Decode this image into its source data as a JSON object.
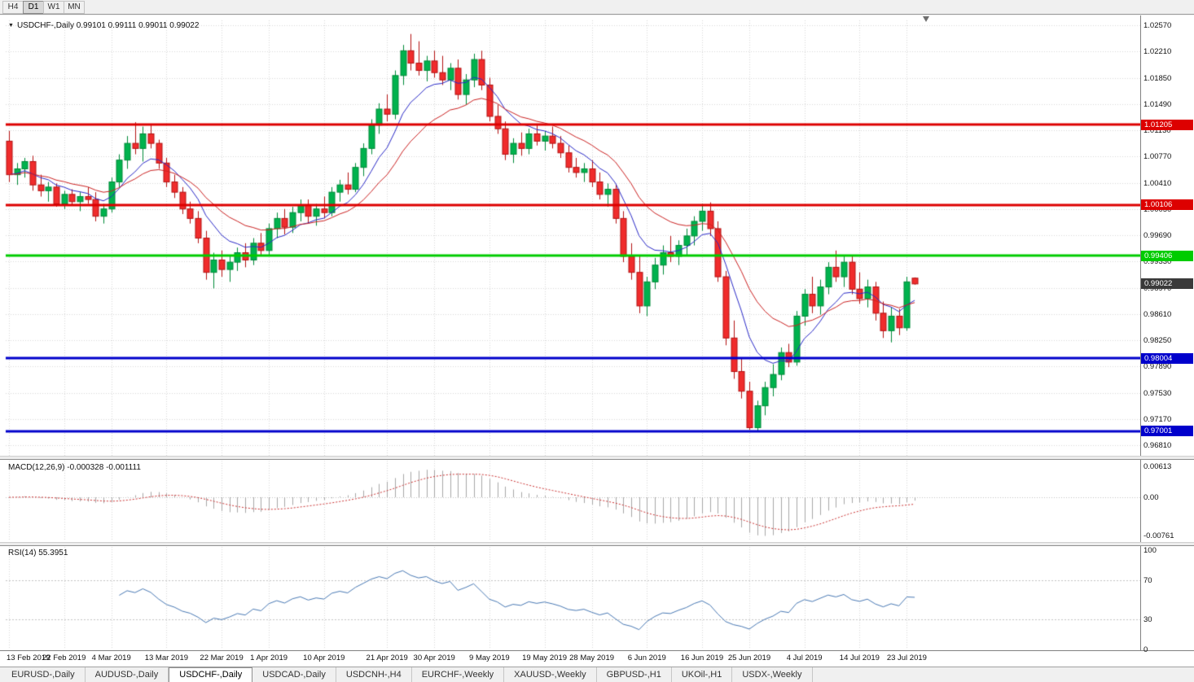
{
  "toolbar": {
    "timeframes": [
      "H4",
      "D1",
      "W1",
      "MN"
    ],
    "active": "D1"
  },
  "chart": {
    "title": "USDCHF-,Daily",
    "ohlc_text": "0.99101 0.99111 0.99011 0.99022"
  },
  "chart_data": {
    "type": "candlestick",
    "symbol": "USDCHF-",
    "period": "Daily",
    "ohlc_format": [
      "open",
      "high",
      "low",
      "close"
    ],
    "candles": [
      [
        1.0098,
        1.0112,
        1.0042,
        1.0052
      ],
      [
        1.0052,
        1.0068,
        1.0038,
        1.006
      ],
      [
        1.006,
        1.0075,
        1.0048,
        1.007
      ],
      [
        1.007,
        1.0078,
        1.003,
        1.0038
      ],
      [
        1.0038,
        1.0052,
        1.0022,
        1.003
      ],
      [
        1.003,
        1.0042,
        1.0015,
        1.0035
      ],
      [
        1.0035,
        1.004,
        1.0008,
        1.0012
      ],
      [
        1.0012,
        1.003,
        1.0005,
        1.0025
      ],
      [
        1.0025,
        1.0032,
        1.001,
        1.0015
      ],
      [
        1.0015,
        1.0028,
        1.0002,
        1.0022
      ],
      [
        1.0022,
        1.0035,
        1.0012,
        1.0018
      ],
      [
        1.0018,
        1.0028,
        0.9988,
        0.9995
      ],
      [
        0.9995,
        1.0012,
        0.9985,
        1.0005
      ],
      [
        1.0005,
        1.0048,
        1.0,
        1.0042
      ],
      [
        1.0042,
        1.008,
        1.0035,
        1.0072
      ],
      [
        1.0072,
        1.0105,
        1.006,
        1.0095
      ],
      [
        1.0095,
        1.0124,
        1.008,
        1.0088
      ],
      [
        1.0088,
        1.0118,
        1.007,
        1.0108
      ],
      [
        1.0108,
        1.0122,
        1.0088,
        1.0095
      ],
      [
        1.0095,
        1.01,
        1.006,
        1.0068
      ],
      [
        1.0068,
        1.0075,
        1.0035,
        1.0042
      ],
      [
        1.0042,
        1.0052,
        1.002,
        1.0028
      ],
      [
        1.0028,
        1.0035,
        0.9998,
        1.0005
      ],
      [
        1.0005,
        1.0015,
        0.9985,
        0.9992
      ],
      [
        0.9992,
        1.0002,
        0.9958,
        0.9965
      ],
      [
        0.9965,
        0.9975,
        0.9908,
        0.9918
      ],
      [
        0.9918,
        0.9945,
        0.9896,
        0.9935
      ],
      [
        0.9935,
        0.9948,
        0.9912,
        0.9922
      ],
      [
        0.9922,
        0.994,
        0.9905,
        0.9932
      ],
      [
        0.9932,
        0.9952,
        0.992,
        0.9945
      ],
      [
        0.9945,
        0.9958,
        0.9925,
        0.9935
      ],
      [
        0.9935,
        0.9965,
        0.9928,
        0.9958
      ],
      [
        0.9958,
        0.9972,
        0.994,
        0.9948
      ],
      [
        0.9948,
        0.9985,
        0.9942,
        0.9978
      ],
      [
        0.9978,
        1.0,
        0.9965,
        0.9992
      ],
      [
        0.9992,
        1.0005,
        0.997,
        0.998
      ],
      [
        0.998,
        1.0008,
        0.9972,
        1.0
      ],
      [
        1.0,
        1.0018,
        0.9988,
        1.001
      ],
      [
        1.001,
        1.0018,
        0.9985,
        0.9995
      ],
      [
        0.9995,
        1.0012,
        0.9982,
        1.0005
      ],
      [
        1.0005,
        1.0022,
        0.9992,
        1.0
      ],
      [
        1.0,
        1.0035,
        0.9995,
        1.0028
      ],
      [
        1.0028,
        1.0045,
        1.0015,
        1.0038
      ],
      [
        1.0038,
        1.0055,
        1.0025,
        1.0032
      ],
      [
        1.0032,
        1.0068,
        1.0028,
        1.0062
      ],
      [
        1.0062,
        1.0095,
        1.005,
        1.0088
      ],
      [
        1.0088,
        1.0128,
        1.008,
        1.012
      ],
      [
        1.012,
        1.015,
        1.0108,
        1.0142
      ],
      [
        1.0142,
        1.0162,
        1.0125,
        1.0135
      ],
      [
        1.0135,
        1.0195,
        1.0128,
        1.0188
      ],
      [
        1.0188,
        1.023,
        1.0175,
        1.0222
      ],
      [
        1.0222,
        1.0245,
        1.0195,
        1.0205
      ],
      [
        1.0205,
        1.0235,
        1.0188,
        1.0195
      ],
      [
        1.0195,
        1.0215,
        1.018,
        1.0208
      ],
      [
        1.0208,
        1.0222,
        1.0185,
        1.0192
      ],
      [
        1.0192,
        1.0215,
        1.0175,
        1.0182
      ],
      [
        1.0182,
        1.0205,
        1.0168,
        1.0198
      ],
      [
        1.0198,
        1.021,
        1.0155,
        1.0162
      ],
      [
        1.0162,
        1.019,
        1.0148,
        1.0182
      ],
      [
        1.0182,
        1.0218,
        1.0172,
        1.021
      ],
      [
        1.021,
        1.0222,
        1.0168,
        1.0175
      ],
      [
        1.0175,
        1.0185,
        1.0125,
        1.0132
      ],
      [
        1.0132,
        1.0148,
        1.0108,
        1.0115
      ],
      [
        1.0115,
        1.0125,
        1.0072,
        1.008
      ],
      [
        1.008,
        1.0102,
        1.0068,
        1.0095
      ],
      [
        1.0095,
        1.011,
        1.0078,
        1.0088
      ],
      [
        1.0088,
        1.0115,
        1.008,
        1.0108
      ],
      [
        1.0108,
        1.0122,
        1.0092,
        1.0098
      ],
      [
        1.0098,
        1.0112,
        1.0085,
        1.0105
      ],
      [
        1.0105,
        1.0118,
        1.0088,
        1.0095
      ],
      [
        1.0095,
        1.0105,
        1.0075,
        1.0082
      ],
      [
        1.0082,
        1.0092,
        1.0055,
        1.0062
      ],
      [
        1.0062,
        1.0075,
        1.0048,
        1.0055
      ],
      [
        1.0055,
        1.0068,
        1.0042,
        1.006
      ],
      [
        1.006,
        1.0072,
        1.0035,
        1.0042
      ],
      [
        1.0042,
        1.0055,
        1.0018,
        1.0025
      ],
      [
        1.0025,
        1.004,
        1.0008,
        1.0032
      ],
      [
        1.0032,
        1.0038,
        0.9985,
        0.9992
      ],
      [
        0.9992,
        1.0002,
        0.9932,
        0.994
      ],
      [
        0.994,
        0.9958,
        0.9908,
        0.9918
      ],
      [
        0.9918,
        0.9942,
        0.9862,
        0.9872
      ],
      [
        0.9872,
        0.9912,
        0.9858,
        0.9905
      ],
      [
        0.9905,
        0.9938,
        0.9895,
        0.9928
      ],
      [
        0.9928,
        0.9955,
        0.9915,
        0.9945
      ],
      [
        0.9945,
        0.9968,
        0.9932,
        0.994
      ],
      [
        0.994,
        0.9962,
        0.9928,
        0.9955
      ],
      [
        0.9955,
        0.9978,
        0.9942,
        0.9968
      ],
      [
        0.9968,
        0.9995,
        0.9955,
        0.9988
      ],
      [
        0.9988,
        1.0012,
        0.9975,
        1.0002
      ],
      [
        1.0002,
        1.0014,
        0.9968,
        0.9978
      ],
      [
        0.9978,
        0.9988,
        0.9905,
        0.9912
      ],
      [
        0.9912,
        0.992,
        0.9818,
        0.9828
      ],
      [
        0.9828,
        0.9852,
        0.9772,
        0.9782
      ],
      [
        0.9782,
        0.98,
        0.9745,
        0.9755
      ],
      [
        0.9755,
        0.9768,
        0.9702,
        0.9705
      ],
      [
        0.9705,
        0.9742,
        0.97,
        0.9735
      ],
      [
        0.9735,
        0.9768,
        0.9722,
        0.976
      ],
      [
        0.976,
        0.9792,
        0.9748,
        0.9778
      ],
      [
        0.9778,
        0.9815,
        0.977,
        0.9808
      ],
      [
        0.9808,
        0.982,
        0.9788,
        0.9795
      ],
      [
        0.9795,
        0.9865,
        0.979,
        0.9858
      ],
      [
        0.9858,
        0.9895,
        0.9845,
        0.9888
      ],
      [
        0.9888,
        0.9912,
        0.9862,
        0.9872
      ],
      [
        0.9872,
        0.9908,
        0.986,
        0.9898
      ],
      [
        0.9898,
        0.9932,
        0.9888,
        0.9925
      ],
      [
        0.9925,
        0.9948,
        0.9905,
        0.9912
      ],
      [
        0.9912,
        0.9942,
        0.9898,
        0.9932
      ],
      [
        0.9932,
        0.994,
        0.9888,
        0.9895
      ],
      [
        0.9895,
        0.9918,
        0.9875,
        0.9882
      ],
      [
        0.9882,
        0.9908,
        0.987,
        0.9898
      ],
      [
        0.9898,
        0.9905,
        0.9852,
        0.9862
      ],
      [
        0.9862,
        0.9878,
        0.9828,
        0.9838
      ],
      [
        0.9838,
        0.987,
        0.9822,
        0.9858
      ],
      [
        0.9858,
        0.9868,
        0.9832,
        0.9842
      ],
      [
        0.9842,
        0.9912,
        0.9838,
        0.9905
      ],
      [
        0.99101,
        0.99111,
        0.99011,
        0.99022
      ]
    ],
    "x_labels": [
      {
        "label": "13 Feb 2019",
        "bar": 0
      },
      {
        "label": "22 Feb 2019",
        "bar": 7
      },
      {
        "label": "4 Mar 2019",
        "bar": 13
      },
      {
        "label": "13 Mar 2019",
        "bar": 20
      },
      {
        "label": "22 Mar 2019",
        "bar": 27
      },
      {
        "label": "1 Apr 2019",
        "bar": 33
      },
      {
        "label": "10 Apr 2019",
        "bar": 40
      },
      {
        "label": "21 Apr 2019",
        "bar": 48
      },
      {
        "label": "30 Apr 2019",
        "bar": 54
      },
      {
        "label": "9 May 2019",
        "bar": 61
      },
      {
        "label": "19 May 2019",
        "bar": 68
      },
      {
        "label": "28 May 2019",
        "bar": 74
      },
      {
        "label": "6 Jun 2019",
        "bar": 81
      },
      {
        "label": "16 Jun 2019",
        "bar": 88
      },
      {
        "label": "25 Jun 2019",
        "bar": 94
      },
      {
        "label": "4 Jul 2019",
        "bar": 101
      },
      {
        "label": "14 Jul 2019",
        "bar": 108
      },
      {
        "label": "23 Jul 2019",
        "bar": 114
      }
    ],
    "y_axis": {
      "labels": [
        "1.02570",
        "1.02210",
        "1.01850",
        "1.01490",
        "1.01130",
        "1.00770",
        "1.00410",
        "1.00050",
        "0.99690",
        "0.99330",
        "0.98970",
        "0.98610",
        "0.98250",
        "0.97890",
        "0.97530",
        "0.97170",
        "0.96810"
      ]
    },
    "levels": [
      {
        "value": 1.01205,
        "label": "1.01205",
        "color": "#dd0000"
      },
      {
        "value": 1.00106,
        "label": "1.00106",
        "color": "#dd0000"
      },
      {
        "value": 0.99406,
        "label": "0.99406",
        "color": "#00cc00"
      },
      {
        "value": 0.98004,
        "label": "0.98004",
        "color": "#0000cc"
      },
      {
        "value": 0.97001,
        "label": "0.97001",
        "color": "#0000cc"
      }
    ],
    "current_price": {
      "value": 0.99022,
      "label": "0.99022",
      "badge_color": "#3a3a3a"
    },
    "moving_averages": [
      {
        "name": "fast-ma",
        "color": "#2a2ac8",
        "period": 8
      },
      {
        "name": "slow-ma",
        "color": "#cc2222",
        "period": 17
      }
    ],
    "indicators": {
      "macd": {
        "label": "MACD(12,26,9)",
        "values_text": "-0.000328 -0.001111",
        "params": [
          12,
          26,
          9
        ],
        "axis_labels": [
          {
            "value": 0.00613,
            "label": "0.00613"
          },
          {
            "value": 0,
            "label": "0.00"
          },
          {
            "value": -0.00761,
            "label": "-0.00761"
          }
        ],
        "histogram_color": "#a8a8a8",
        "signal_color": "#cc3333"
      },
      "rsi": {
        "label": "RSI(14)",
        "value_text": "55.3951",
        "period": 14,
        "levels": [
          70,
          30
        ],
        "axis_labels": [
          {
            "value": 100,
            "label": "100"
          },
          {
            "value": 70,
            "label": "70"
          },
          {
            "value": 30,
            "label": "30"
          },
          {
            "value": 0,
            "label": "0"
          }
        ],
        "line_color": "#4a7ab5"
      }
    },
    "colors": {
      "bull_fill": "#00b24e",
      "bull_border": "#008a38",
      "bear_fill": "#f02c2c",
      "bear_border": "#b31212",
      "grid": "#d8d8d8",
      "background": "#ffffff"
    }
  },
  "tabs": {
    "items": [
      "EURUSD-,Daily",
      "AUDUSD-,Daily",
      "USDCHF-,Daily",
      "USDCAD-,Daily",
      "USDCNH-,H4",
      "EURCHF-,Weekly",
      "XAUUSD-,Weekly",
      "GBPUSD-,H1",
      "UKOil-,H1",
      "USDX-,Weekly"
    ],
    "active_index": 2
  }
}
